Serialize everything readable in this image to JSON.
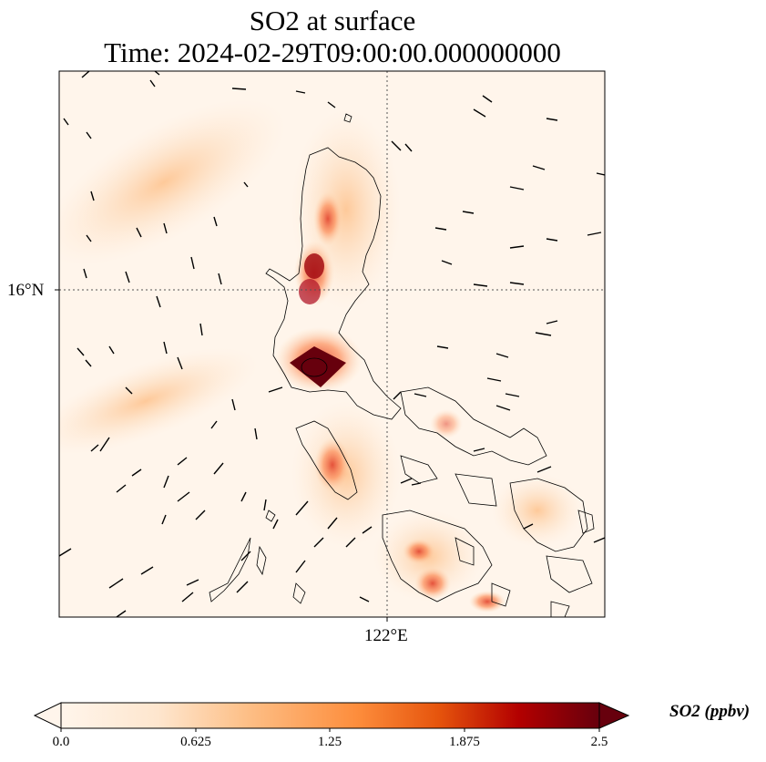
{
  "title": {
    "line1": "SO2 at surface",
    "line2": "Time: 2024-02-29T09:00:00.000000000"
  },
  "axes": {
    "lat_tick": "16°N",
    "lon_tick": "122°E"
  },
  "colorbar": {
    "label": "SO2 (ppbv)",
    "ticks": [
      "0.0",
      "0.625",
      "1.25",
      "1.875",
      "2.5"
    ],
    "range": [
      0.0,
      2.5
    ],
    "extend": "min-and-max",
    "colormap": [
      "#fff5eb",
      "#fdd9b3",
      "#fdae6b",
      "#f16913",
      "#d94801",
      "#a50f15",
      "#67000d"
    ]
  },
  "map": {
    "field": "SO2",
    "units": "ppbv",
    "gridlines": "dotted",
    "coastlines": true,
    "wind_vectors": true
  }
}
